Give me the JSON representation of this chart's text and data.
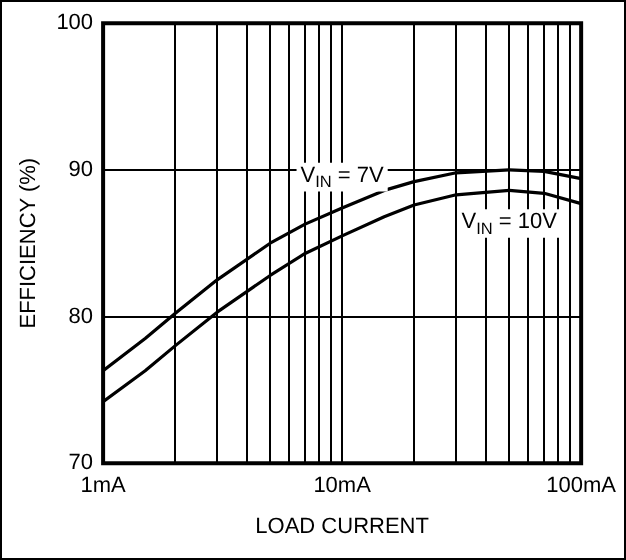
{
  "chart_data": {
    "type": "line",
    "xlabel": "LOAD CURRENT",
    "ylabel": "EFFICIENCY (%)",
    "log": "x",
    "x": [
      1,
      1.5,
      2,
      3,
      5,
      7,
      10,
      15,
      20,
      30,
      50,
      70,
      100
    ],
    "series": [
      {
        "name": "V$_{IN}$ = 7V",
        "color": "#000000",
        "values": [
          76.3,
          78.5,
          80.2,
          82.5,
          85.0,
          86.3,
          87.4,
          88.6,
          89.2,
          89.8,
          90.0,
          89.9,
          89.4
        ]
      },
      {
        "name": "V$_{IN}$ = 10V",
        "color": "#000000",
        "values": [
          74.2,
          76.3,
          78.0,
          80.3,
          82.8,
          84.3,
          85.5,
          86.8,
          87.6,
          88.3,
          88.6,
          88.4,
          87.7
        ]
      }
    ],
    "xlim": [
      1,
      100
    ],
    "ylim": [
      70,
      100
    ],
    "xticks": [
      {
        "value": 1,
        "label": "1mA"
      },
      {
        "value": 2,
        "label": null
      },
      {
        "value": 3,
        "label": null
      },
      {
        "value": 4,
        "label": null
      },
      {
        "value": 5,
        "label": null
      },
      {
        "value": 6,
        "label": null
      },
      {
        "value": 7,
        "label": null
      },
      {
        "value": 8,
        "label": null
      },
      {
        "value": 9,
        "label": null
      },
      {
        "value": 10,
        "label": "10mA"
      },
      {
        "value": 20,
        "label": null
      },
      {
        "value": 30,
        "label": null
      },
      {
        "value": 40,
        "label": null
      },
      {
        "value": 50,
        "label": null
      },
      {
        "value": 60,
        "label": null
      },
      {
        "value": 70,
        "label": null
      },
      {
        "value": 80,
        "label": null
      },
      {
        "value": 90,
        "label": null
      },
      {
        "value": 100,
        "label": "100mA"
      }
    ],
    "yticks": [
      70,
      80,
      90,
      100
    ],
    "grid": true,
    "legend": false,
    "marker": "none",
    "line_style": "solid"
  }
}
